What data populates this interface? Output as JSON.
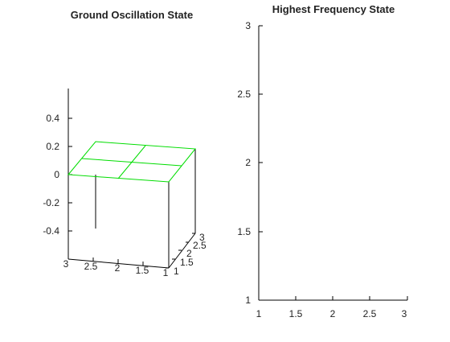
{
  "chart_data": [
    {
      "type": "surface",
      "title": "Ground Oscillation State",
      "z_ticks": [
        "0.4",
        "0.2",
        "0",
        "-0.2",
        "-0.4"
      ],
      "x_ticks": [
        "3",
        "2.5",
        "2",
        "1.5",
        "1"
      ],
      "y_ticks": [
        "1",
        "1.5",
        "2",
        "2.5",
        "3"
      ],
      "x": [
        1,
        2,
        3
      ],
      "y": [
        1,
        2,
        3
      ],
      "z": [
        [
          0,
          0,
          0
        ],
        [
          0,
          0,
          0
        ],
        [
          0,
          0,
          0
        ]
      ],
      "surface_color": "#00dd00",
      "axis_color": "#000000"
    },
    {
      "type": "line",
      "title": "Highest Frequency State",
      "x_ticks": [
        "1",
        "1.5",
        "2",
        "2.5",
        "3"
      ],
      "y_ticks": [
        "3",
        "2.5",
        "2",
        "1.5",
        "1"
      ],
      "xlim": [
        1,
        3
      ],
      "ylim": [
        1,
        3
      ],
      "series": []
    }
  ]
}
